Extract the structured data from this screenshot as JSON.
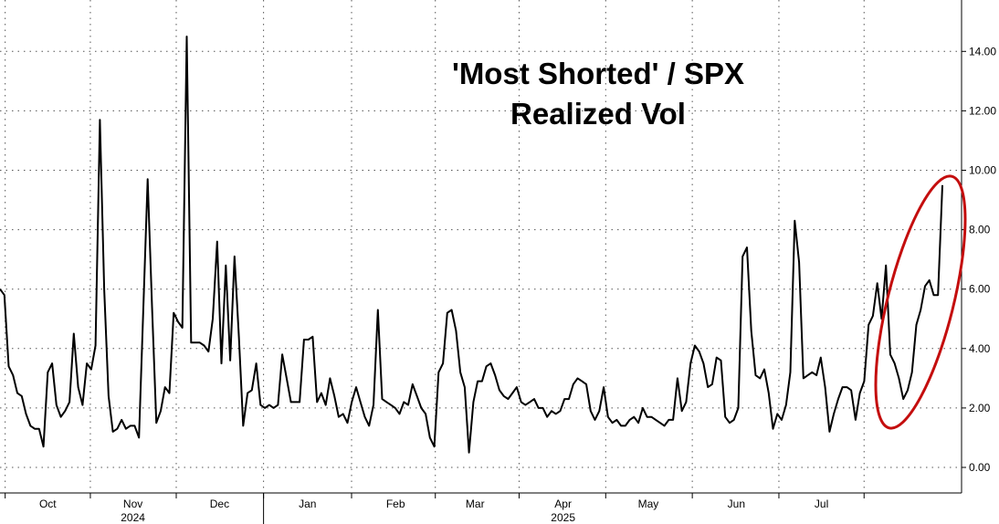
{
  "chart_data": {
    "type": "line",
    "title": "'Most Shorted' / SPX",
    "subtitle": "Realized Vol",
    "ylim": [
      -1,
      15.8
    ],
    "y_ticks": [
      "0.00",
      "2.00",
      "4.00",
      "6.00",
      "8.00",
      "10.00",
      "12.00",
      "14.00"
    ],
    "y_tick_values": [
      0,
      2,
      4,
      6,
      8,
      10,
      12,
      14
    ],
    "x_month_labels": [
      {
        "label": "Oct",
        "x": 16.5
      },
      {
        "label": "Nov",
        "x": 46.5
      },
      {
        "label": "Dec",
        "x": 77
      },
      {
        "label": "Jan",
        "x": 108
      },
      {
        "label": "Feb",
        "x": 139
      },
      {
        "label": "Mar",
        "x": 167
      },
      {
        "label": "Apr",
        "x": 198
      },
      {
        "label": "May",
        "x": 228
      },
      {
        "label": "Jun",
        "x": 259
      },
      {
        "label": "Jul",
        "x": 289
      }
    ],
    "x_year_labels": [
      {
        "label": "2024",
        "x": 46.5
      },
      {
        "label": "2025",
        "x": 198
      }
    ],
    "xlim": [
      0,
      299
    ],
    "grid": true,
    "series": [
      {
        "values": [
          [
            0,
            6.0
          ],
          [
            1,
            5.8
          ],
          [
            2,
            3.4
          ],
          [
            3,
            3.1
          ],
          [
            4,
            2.5
          ],
          [
            5,
            2.4
          ],
          [
            6,
            1.8
          ],
          [
            7,
            1.4
          ],
          [
            8,
            1.3
          ],
          [
            9,
            1.3
          ],
          [
            10,
            0.7
          ],
          [
            11,
            3.2
          ],
          [
            12,
            3.5
          ],
          [
            13,
            2.1
          ],
          [
            14,
            1.7
          ],
          [
            15,
            1.9
          ],
          [
            16,
            2.2
          ],
          [
            17,
            4.5
          ],
          [
            18,
            2.7
          ],
          [
            19,
            2.1
          ],
          [
            20,
            3.5
          ],
          [
            21,
            3.3
          ],
          [
            22,
            4.1
          ],
          [
            23,
            11.7
          ],
          [
            24,
            6.0
          ],
          [
            25,
            2.4
          ],
          [
            26,
            1.2
          ],
          [
            27,
            1.3
          ],
          [
            28,
            1.6
          ],
          [
            29,
            1.3
          ],
          [
            30,
            1.4
          ],
          [
            31,
            1.4
          ],
          [
            32,
            1.0
          ],
          [
            33,
            5.3
          ],
          [
            34,
            9.7
          ],
          [
            35,
            5.4
          ],
          [
            36,
            1.5
          ],
          [
            37,
            1.9
          ],
          [
            38,
            2.7
          ],
          [
            39,
            2.5
          ],
          [
            40,
            5.2
          ],
          [
            41,
            4.9
          ],
          [
            42,
            4.7
          ],
          [
            43,
            14.5
          ],
          [
            44,
            4.2
          ],
          [
            45,
            4.2
          ],
          [
            46,
            4.2
          ],
          [
            47,
            4.1
          ],
          [
            48,
            3.9
          ],
          [
            49,
            5.0
          ],
          [
            50,
            7.6
          ],
          [
            51,
            3.5
          ],
          [
            52,
            6.8
          ],
          [
            53,
            3.6
          ],
          [
            54,
            7.1
          ],
          [
            55,
            4.4
          ],
          [
            56,
            1.4
          ],
          [
            57,
            2.5
          ],
          [
            58,
            2.6
          ],
          [
            59,
            3.5
          ],
          [
            60,
            2.1
          ],
          [
            61,
            2.0
          ],
          [
            62,
            2.1
          ],
          [
            63,
            2.0
          ],
          [
            64,
            2.1
          ],
          [
            65,
            3.8
          ],
          [
            66,
            3.0
          ],
          [
            67,
            2.2
          ],
          [
            68,
            2.2
          ],
          [
            69,
            2.2
          ],
          [
            70,
            4.3
          ],
          [
            71,
            4.3
          ],
          [
            72,
            4.4
          ],
          [
            73,
            2.2
          ],
          [
            74,
            2.5
          ],
          [
            75,
            2.1
          ],
          [
            76,
            3.0
          ],
          [
            77,
            2.4
          ],
          [
            78,
            1.7
          ],
          [
            79,
            1.8
          ],
          [
            80,
            1.5
          ],
          [
            81,
            2.2
          ],
          [
            82,
            2.7
          ],
          [
            83,
            2.2
          ],
          [
            84,
            1.7
          ],
          [
            85,
            1.4
          ],
          [
            86,
            2.1
          ],
          [
            87,
            5.3
          ],
          [
            88,
            2.3
          ],
          [
            89,
            2.2
          ],
          [
            90,
            2.1
          ],
          [
            91,
            2.0
          ],
          [
            92,
            1.8
          ],
          [
            93,
            2.2
          ],
          [
            94,
            2.1
          ],
          [
            95,
            2.8
          ],
          [
            96,
            2.4
          ],
          [
            97,
            2.0
          ],
          [
            98,
            1.8
          ],
          [
            99,
            1.0
          ],
          [
            100,
            0.7
          ],
          [
            101,
            3.2
          ],
          [
            102,
            3.5
          ],
          [
            103,
            5.2
          ],
          [
            104,
            5.3
          ],
          [
            105,
            4.6
          ],
          [
            106,
            3.2
          ],
          [
            107,
            2.7
          ],
          [
            108,
            0.5
          ],
          [
            109,
            2.2
          ],
          [
            110,
            2.9
          ],
          [
            111,
            2.9
          ],
          [
            112,
            3.4
          ],
          [
            113,
            3.5
          ],
          [
            114,
            3.1
          ],
          [
            115,
            2.6
          ],
          [
            116,
            2.4
          ],
          [
            117,
            2.3
          ],
          [
            118,
            2.5
          ],
          [
            119,
            2.7
          ],
          [
            120,
            2.2
          ],
          [
            121,
            2.1
          ],
          [
            122,
            2.2
          ],
          [
            123,
            2.3
          ],
          [
            124,
            2.0
          ],
          [
            125,
            2.0
          ],
          [
            126,
            1.7
          ],
          [
            127,
            1.9
          ],
          [
            128,
            1.8
          ],
          [
            129,
            1.9
          ],
          [
            130,
            2.3
          ],
          [
            131,
            2.3
          ],
          [
            132,
            2.8
          ],
          [
            133,
            3.0
          ],
          [
            134,
            2.9
          ],
          [
            135,
            2.8
          ],
          [
            136,
            1.9
          ],
          [
            137,
            1.6
          ],
          [
            138,
            1.9
          ],
          [
            139,
            2.7
          ],
          [
            140,
            1.7
          ],
          [
            141,
            1.5
          ],
          [
            142,
            1.6
          ],
          [
            143,
            1.4
          ],
          [
            144,
            1.4
          ],
          [
            145,
            1.6
          ],
          [
            146,
            1.7
          ],
          [
            147,
            1.5
          ],
          [
            148,
            2.0
          ],
          [
            149,
            1.7
          ],
          [
            150,
            1.7
          ],
          [
            151,
            1.6
          ],
          [
            152,
            1.5
          ],
          [
            153,
            1.4
          ],
          [
            154,
            1.6
          ],
          [
            155,
            1.6
          ],
          [
            156,
            3.0
          ],
          [
            157,
            1.9
          ],
          [
            158,
            2.2
          ],
          [
            159,
            3.5
          ],
          [
            160,
            4.1
          ],
          [
            161,
            3.9
          ],
          [
            162,
            3.5
          ],
          [
            163,
            2.7
          ],
          [
            164,
            2.8
          ],
          [
            165,
            3.7
          ],
          [
            166,
            3.6
          ],
          [
            167,
            1.7
          ],
          [
            168,
            1.5
          ],
          [
            169,
            1.6
          ],
          [
            170,
            2.0
          ],
          [
            171,
            7.1
          ],
          [
            172,
            7.4
          ],
          [
            173,
            4.6
          ],
          [
            174,
            3.1
          ],
          [
            175,
            3.0
          ],
          [
            176,
            3.3
          ],
          [
            177,
            2.5
          ],
          [
            178,
            1.3
          ],
          [
            179,
            1.8
          ],
          [
            180,
            1.6
          ],
          [
            181,
            2.1
          ],
          [
            182,
            3.2
          ],
          [
            183,
            8.3
          ],
          [
            184,
            6.9
          ],
          [
            185,
            3.0
          ],
          [
            186,
            3.1
          ],
          [
            187,
            3.2
          ],
          [
            188,
            3.1
          ],
          [
            189,
            3.7
          ],
          [
            190,
            2.7
          ],
          [
            191,
            1.2
          ],
          [
            192,
            1.8
          ],
          [
            193,
            2.3
          ],
          [
            194,
            2.7
          ],
          [
            195,
            2.7
          ],
          [
            196,
            2.6
          ],
          [
            197,
            1.6
          ],
          [
            198,
            2.5
          ],
          [
            199,
            2.9
          ],
          [
            200,
            4.8
          ],
          [
            201,
            5.1
          ],
          [
            202,
            6.2
          ],
          [
            203,
            5.0
          ],
          [
            204,
            6.8
          ],
          [
            205,
            3.8
          ],
          [
            206,
            3.5
          ],
          [
            207,
            3.0
          ],
          [
            208,
            2.3
          ],
          [
            209,
            2.6
          ],
          [
            210,
            3.2
          ],
          [
            211,
            4.8
          ],
          [
            212,
            5.3
          ],
          [
            213,
            6.1
          ],
          [
            214,
            6.3
          ],
          [
            215,
            5.8
          ],
          [
            216,
            5.8
          ],
          [
            217,
            9.5
          ]
        ]
      }
    ],
    "annotations": [
      {
        "type": "ellipse",
        "color": "#c40e0e"
      }
    ]
  },
  "colors": {
    "line": "#000000",
    "highlight": "#c40e0e",
    "grid": "#555555",
    "background": "#ffffff"
  }
}
